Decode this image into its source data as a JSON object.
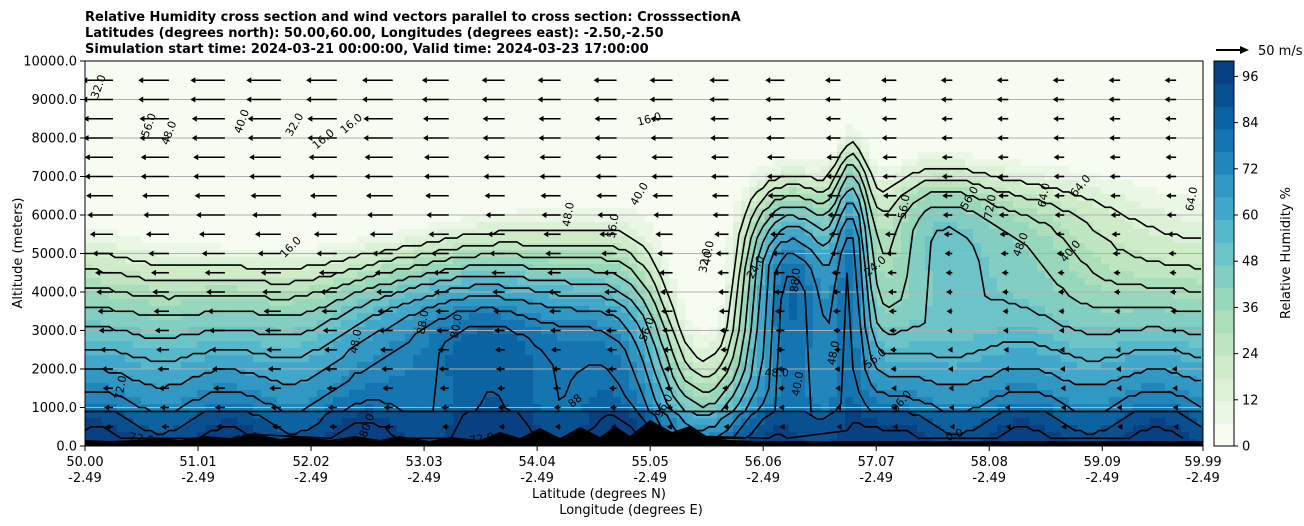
{
  "chart_data": {
    "type": "contourf",
    "title_lines": [
      "Relative Humidity cross section and wind vectors parallel to cross section: CrosssectionA",
      "Latitudes (degrees north): 50.00,60.00, Longitudes (degrees east): -2.50,-2.50",
      "Simulation start time: 2024-03-21 00:00:00, Valid time: 2024-03-23 17:00:00"
    ],
    "ylabel": "Altitude (meters)",
    "xlabel_lines": [
      "Latitude (degrees N)",
      "Longitude (degrees E)"
    ],
    "xlim": [
      50.0,
      59.99
    ],
    "ylim": [
      0,
      10000
    ],
    "x_ticks": [
      {
        "lat": "50.00",
        "lon": "-2.49",
        "value": 50.0
      },
      {
        "lat": "51.01",
        "lon": "-2.49",
        "value": 51.01
      },
      {
        "lat": "52.02",
        "lon": "-2.49",
        "value": 52.02
      },
      {
        "lat": "53.03",
        "lon": "-2.49",
        "value": 53.03
      },
      {
        "lat": "54.04",
        "lon": "-2.49",
        "value": 54.04
      },
      {
        "lat": "55.05",
        "lon": "-2.49",
        "value": 55.05
      },
      {
        "lat": "56.06",
        "lon": "-2.49",
        "value": 56.06
      },
      {
        "lat": "57.07",
        "lon": "-2.49",
        "value": 57.07
      },
      {
        "lat": "58.08",
        "lon": "-2.49",
        "value": 58.08
      },
      {
        "lat": "59.09",
        "lon": "-2.49",
        "value": 59.09
      },
      {
        "lat": "59.99",
        "lon": "-2.49",
        "value": 59.99
      }
    ],
    "y_ticks": [
      {
        "label": "0.0",
        "value": 0
      },
      {
        "label": "1000.0",
        "value": 1000
      },
      {
        "label": "2000.0",
        "value": 2000
      },
      {
        "label": "3000.0",
        "value": 3000
      },
      {
        "label": "4000.0",
        "value": 4000
      },
      {
        "label": "5000.0",
        "value": 5000
      },
      {
        "label": "6000.0",
        "value": 6000
      },
      {
        "label": "7000.0",
        "value": 7000
      },
      {
        "label": "8000.0",
        "value": 8000
      },
      {
        "label": "9000.0",
        "value": 9000
      },
      {
        "label": "10000.0",
        "value": 10000
      }
    ],
    "colorbar": {
      "label": "Relative Humidity %",
      "min": 0,
      "max": 100,
      "tick_labels": [
        "0",
        "12",
        "24",
        "36",
        "48",
        "60",
        "72",
        "84",
        "96"
      ],
      "tick_values": [
        0,
        12,
        24,
        36,
        48,
        60,
        72,
        84,
        96
      ],
      "colors": [
        "#f7fcf0",
        "#eaf7e4",
        "#dcf2d6",
        "#cfecc9",
        "#bee6c0",
        "#abdfba",
        "#97d7bc",
        "#82cec2",
        "#6cc4c9",
        "#56b8cb",
        "#41a8cb",
        "#3197c3",
        "#2386bb",
        "#1575b0",
        "#0b63a2",
        "#08508f",
        "#084081"
      ]
    },
    "wind_reference": {
      "label": "50 m/s",
      "speed": 50
    },
    "wind_field": {
      "columns_lat": [
        50.0,
        50.5,
        51.0,
        51.5,
        52.0,
        52.5,
        53.0,
        53.5,
        54.0,
        54.5,
        55.0,
        55.5,
        56.0,
        56.5,
        57.0,
        57.5,
        58.0,
        58.5,
        59.0,
        59.5
      ],
      "rows_alt": [
        500,
        1000,
        1500,
        2000,
        2500,
        3000,
        3500,
        4000,
        4500,
        5000,
        5500,
        6000,
        6500,
        7000,
        7500,
        8000,
        8500,
        9000,
        9500
      ],
      "u_ms_by_column": [
        -8,
        -8,
        -9,
        -9,
        -8,
        -8,
        -7,
        -6,
        -6,
        -6,
        -6,
        -5,
        -5,
        -4,
        -4,
        -3,
        -3,
        -3,
        -3,
        -3
      ],
      "u_scale_by_row": [
        0.6,
        0.7,
        0.8,
        0.9,
        1.0,
        1.1,
        1.2,
        1.3,
        1.4,
        1.6,
        1.8,
        2.0,
        2.1,
        2.2,
        2.2,
        2.3,
        2.3,
        2.4,
        2.4
      ]
    },
    "contour_labels": [
      {
        "text": "32.0",
        "lat": 50.15,
        "alt": 9300,
        "rot": -70
      },
      {
        "text": "56.0",
        "lat": 50.6,
        "alt": 8300,
        "rot": -70
      },
      {
        "text": "48.0",
        "lat": 50.78,
        "alt": 8100,
        "rot": -70
      },
      {
        "text": "40.0",
        "lat": 51.43,
        "alt": 8400,
        "rot": -70
      },
      {
        "text": "32.0",
        "lat": 51.9,
        "alt": 8300,
        "rot": -60
      },
      {
        "text": "16.0",
        "lat": 52.15,
        "alt": 7900,
        "rot": -40
      },
      {
        "text": "16.0",
        "lat": 52.4,
        "alt": 8300,
        "rot": -40
      },
      {
        "text": "16.0",
        "lat": 55.05,
        "alt": 8400,
        "rot": -15
      },
      {
        "text": "16.0",
        "lat": 51.86,
        "alt": 5100,
        "rot": -45
      },
      {
        "text": "48.0",
        "lat": 52.45,
        "alt": 2700,
        "rot": -80
      },
      {
        "text": "88.0",
        "lat": 53.05,
        "alt": 3200,
        "rot": -80
      },
      {
        "text": "80.0",
        "lat": 53.35,
        "alt": 3100,
        "rot": -80
      },
      {
        "text": "72.0",
        "lat": 50.35,
        "alt": 1500,
        "rot": -80
      },
      {
        "text": "72.0",
        "lat": 50.5,
        "alt": 100,
        "rot": 10
      },
      {
        "text": "72.0",
        "lat": 51.45,
        "alt": 100,
        "rot": -10
      },
      {
        "text": "80.0",
        "lat": 52.55,
        "alt": 500,
        "rot": -70
      },
      {
        "text": "72.0",
        "lat": 53.55,
        "alt": 100,
        "rot": -10
      },
      {
        "text": "88",
        "lat": 54.4,
        "alt": 1100,
        "rot": -40
      },
      {
        "text": "96.0",
        "lat": 55.2,
        "alt": 1000,
        "rot": -60
      },
      {
        "text": "48.0",
        "lat": 54.35,
        "alt": 6000,
        "rot": -80
      },
      {
        "text": "40.0",
        "lat": 54.98,
        "alt": 6500,
        "rot": -60
      },
      {
        "text": "56.0",
        "lat": 54.75,
        "alt": 5700,
        "rot": -80
      },
      {
        "text": "56.0",
        "lat": 55.05,
        "alt": 3000,
        "rot": -70
      },
      {
        "text": "40.0",
        "lat": 55.6,
        "alt": 5000,
        "rot": -80
      },
      {
        "text": "32.0",
        "lat": 55.57,
        "alt": 4800,
        "rot": -80
      },
      {
        "text": "24.0",
        "lat": 56.02,
        "alt": 4600,
        "rot": -60
      },
      {
        "text": "88.0",
        "lat": 56.38,
        "alt": 4300,
        "rot": -85
      },
      {
        "text": "48.0",
        "lat": 56.18,
        "alt": 1800,
        "rot": 0
      },
      {
        "text": "40.0",
        "lat": 56.4,
        "alt": 1600,
        "rot": -80
      },
      {
        "text": "48.0",
        "lat": 56.72,
        "alt": 2400,
        "rot": -80
      },
      {
        "text": "24.0",
        "lat": 57.08,
        "alt": 4600,
        "rot": -40
      },
      {
        "text": "56.0",
        "lat": 57.08,
        "alt": 2200,
        "rot": -40
      },
      {
        "text": "56.0",
        "lat": 57.35,
        "alt": 6200,
        "rot": -80
      },
      {
        "text": "56.0",
        "lat": 57.93,
        "alt": 6400,
        "rot": -60
      },
      {
        "text": "72.0",
        "lat": 58.12,
        "alt": 6200,
        "rot": -80
      },
      {
        "text": "48.0",
        "lat": 58.39,
        "alt": 5200,
        "rot": -70
      },
      {
        "text": "40.0",
        "lat": 58.83,
        "alt": 5000,
        "rot": -50
      },
      {
        "text": "64.0",
        "lat": 58.6,
        "alt": 6500,
        "rot": -80
      },
      {
        "text": "64.0",
        "lat": 58.92,
        "alt": 6700,
        "rot": -50
      },
      {
        "text": "64.0",
        "lat": 59.92,
        "alt": 6400,
        "rot": -80
      },
      {
        "text": "96.0",
        "lat": 57.32,
        "alt": 1100,
        "rot": -50
      },
      {
        "text": "0.0",
        "lat": 57.78,
        "alt": 200,
        "rot": -20
      }
    ]
  }
}
